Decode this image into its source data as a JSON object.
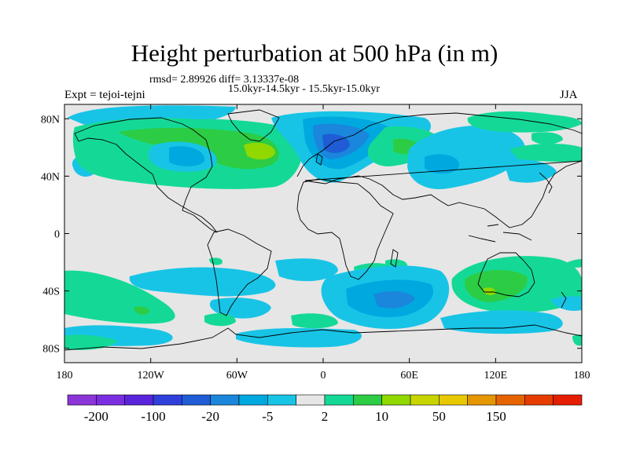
{
  "title": "Height perturbation at 500 hPa (in m)",
  "stats_line": "rmsd= 2.89926 diff= 3.13337e-08",
  "periods_line": "15.0kyr-14.5kyr - 15.5kyr-15.0kyr",
  "experiment_label": "Expt = tejoi-tejni",
  "season_label": "JJA",
  "map": {
    "projection": "cylindrical-equidistant",
    "lon_range": [
      -180,
      180
    ],
    "lat_range": [
      -90,
      90
    ],
    "lat_ticks": [
      {
        "value": 80,
        "label": "80N"
      },
      {
        "value": 40,
        "label": "40N"
      },
      {
        "value": 0,
        "label": "0"
      },
      {
        "value": -40,
        "label": "40S"
      },
      {
        "value": -80,
        "label": "80S"
      }
    ],
    "lon_ticks": [
      {
        "value": -180,
        "label": "180"
      },
      {
        "value": -120,
        "label": "120W"
      },
      {
        "value": -60,
        "label": "60W"
      },
      {
        "value": 0,
        "label": "0"
      },
      {
        "value": 60,
        "label": "60E"
      },
      {
        "value": 120,
        "label": "120E"
      },
      {
        "value": 180,
        "label": "180"
      }
    ],
    "background_color": "#e6e6e6"
  },
  "colorbar": {
    "colors": [
      "#8c35d8",
      "#7a2ee0",
      "#5a24dc",
      "#2e3fdc",
      "#1f5cd6",
      "#1a86dc",
      "#00a8e0",
      "#18c4e6",
      "#e6e6e6",
      "#14d996",
      "#2ccc44",
      "#90d800",
      "#c8d400",
      "#e8c800",
      "#e69600",
      "#e66400",
      "#e63c00",
      "#e61e00"
    ],
    "labels": [
      {
        "after_box": 1,
        "text": "-200"
      },
      {
        "after_box": 3,
        "text": "-100"
      },
      {
        "after_box": 5,
        "text": "-20"
      },
      {
        "after_box": 7,
        "text": "-5"
      },
      {
        "after_box": 9,
        "text": "2"
      },
      {
        "after_box": 11,
        "text": "10"
      },
      {
        "after_box": 13,
        "text": "50"
      },
      {
        "after_box": 15,
        "text": "150"
      }
    ]
  }
}
